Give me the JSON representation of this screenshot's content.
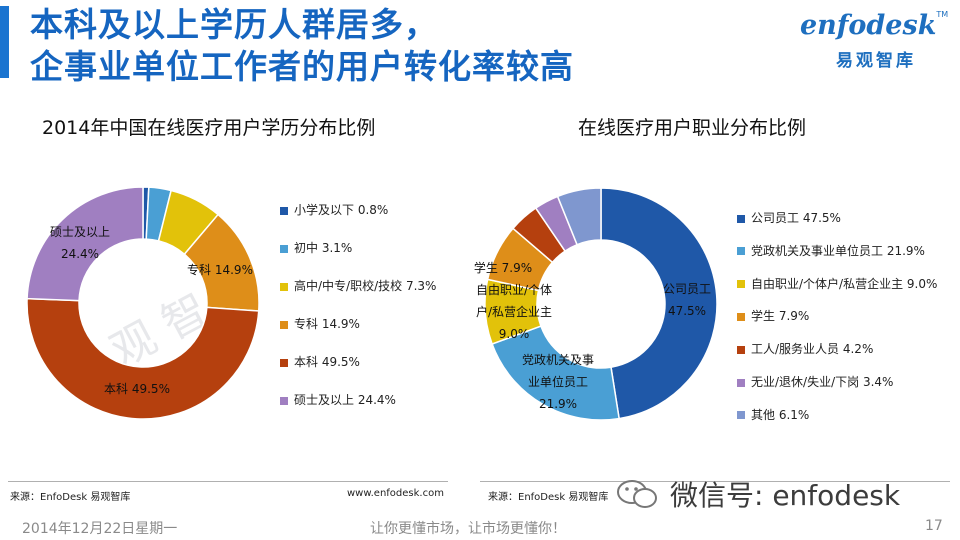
{
  "header": {
    "title_line1": "本科及以上学历人群居多，",
    "title_line2": "企事业单位工作者的用户转化率较高"
  },
  "logo": {
    "word": "enfodesk",
    "tm": "TM",
    "cn": "易观智库"
  },
  "watermark": {
    "text": "易观智库"
  },
  "colors": {
    "title": "#1565c0",
    "accent": "#1a74d0",
    "blue_dark": "#1f58a8",
    "blue_light": "#4a9fd4",
    "yellow": "#e2c20a",
    "orange": "#de8e19",
    "red_brown": "#b5400e",
    "purple": "#a07fc1",
    "steel": "#7f97cf"
  },
  "chart_data": [
    {
      "type": "pie",
      "donut": true,
      "title": "2014年中国在线医疗用户学历分布比例",
      "categories": [
        "小学及以下",
        "初中",
        "高中/中专/职校/技校",
        "专科",
        "本科",
        "硕士及以上"
      ],
      "values": [
        0.8,
        3.1,
        7.3,
        14.9,
        49.5,
        24.4
      ],
      "colors": [
        "#1f58a8",
        "#4a9fd4",
        "#e2c20a",
        "#de8e19",
        "#b5400e",
        "#a07fc1"
      ],
      "legend": [
        "小学及以下  0.8%",
        "初中  3.1%",
        "高中/中专/职校/技校  7.3%",
        "专科  14.9%",
        "本科  49.5%",
        "硕士及以上  24.4%"
      ],
      "legend_position": "right",
      "data_labels": {
        "zhuanke": "专科  14.9%",
        "benke": "本科  49.5%",
        "shuoshi_name": "硕士及以上",
        "shuoshi_value": "24.4%"
      }
    },
    {
      "type": "pie",
      "donut": true,
      "title": "在线医疗用户职业分布比例",
      "categories": [
        "公司员工",
        "党政机关及事业单位员工",
        "自由职业/个体户/私营企业主",
        "学生",
        "工人/服务业人员",
        "无业/退休/失业/下岗",
        "其他"
      ],
      "values": [
        47.5,
        21.9,
        9.0,
        7.9,
        4.2,
        3.4,
        6.1
      ],
      "colors": [
        "#1f58a8",
        "#4a9fd4",
        "#e2c20a",
        "#de8e19",
        "#b5400e",
        "#a07fc1",
        "#7f97cf"
      ],
      "legend": [
        "公司员工  47.5%",
        "党政机关及事业单位员工  21.9%",
        "自由职业/个体户/私营企业主  9.0%",
        "学生  7.9%",
        "工人/服务业人员  4.2%",
        "无业/退休/失业/下岗  3.4%",
        "其他  6.1%"
      ],
      "legend_position": "right",
      "data_labels": {
        "company_name": "公司员工",
        "company_value": "47.5%",
        "gov_line1": "党政机关及事",
        "gov_line2": "业单位员工",
        "gov_value": "21.9%",
        "free_line1": "自由职业/个体",
        "free_line2": "户/私营企业主",
        "free_value": "9.0%",
        "student": "学生  7.9%"
      }
    }
  ],
  "footer": {
    "source_left": "来源：EnfoDesk 易观智库",
    "url_left": "www.enfodesk.com",
    "source_right": "来源：EnfoDesk 易观智库",
    "wechat": "微信号: enfodesk",
    "date": "2014年12月22日星期一",
    "slogan": "让你更懂市场，让市场更懂你！",
    "page": "17"
  }
}
